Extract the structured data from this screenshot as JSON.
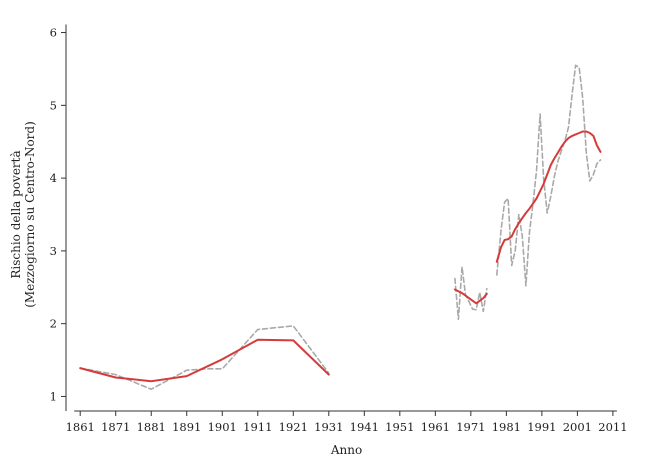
{
  "chart_data": {
    "type": "line",
    "title": "",
    "xlabel": "Anno",
    "ylabel_line1": "Rischio della povertà",
    "ylabel_line2": "(Mezzogiorno su Centro-Nord)",
    "xlim": [
      1857,
      2013
    ],
    "ylim": [
      0.8,
      6.2
    ],
    "xticks": [
      "1861",
      "1871",
      "1881",
      "1891",
      "1901",
      "1911",
      "1921",
      "1931",
      "1941",
      "1951",
      "1961",
      "1971",
      "1981",
      "1991",
      "2001",
      "2011"
    ],
    "yticks": [
      "1",
      "2",
      "3",
      "4",
      "5",
      "6"
    ],
    "grid": false,
    "legend": "none",
    "series": [
      {
        "style": "dashed",
        "color": "#a9a9a9",
        "segments": [
          {
            "x": [
              1861,
              1871,
              1881,
              1891,
              1897,
              1901,
              1911,
              1921,
              1931
            ],
            "y": [
              1.39,
              1.3,
              1.1,
              1.36,
              1.38,
              1.38,
              1.92,
              1.97,
              1.32
            ]
          },
          {
            "x": [
              1966.5,
              1967.5,
              1968.5,
              1969.5,
              1970.5,
              1971.5,
              1972.5,
              1973.5,
              1974.5,
              1975.5
            ],
            "y": [
              2.62,
              2.06,
              2.78,
              2.4,
              2.3,
              2.2,
              2.19,
              2.43,
              2.17,
              2.48
            ]
          },
          {
            "x": [
              1978.3,
              1979.5,
              1980.5,
              1981.5,
              1982.5,
              1983.5,
              1984.5,
              1985.5,
              1986.5,
              1987.5,
              1988.5,
              1989.5,
              1990.5,
              1991.5,
              1992.5,
              1993.5,
              1994.5,
              1995.5,
              1996.5,
              1997.5,
              1998.5,
              1999.5,
              2000.5,
              2001.5,
              2002.5,
              2003.5,
              2004.5,
              2005.5,
              2006.5,
              2007.5
            ],
            "y": [
              2.67,
              3.28,
              3.67,
              3.72,
              2.8,
              3.0,
              3.5,
              3.2,
              2.52,
              3.25,
              3.65,
              4.1,
              4.88,
              4.0,
              3.52,
              3.75,
              4.02,
              4.23,
              4.38,
              4.52,
              4.7,
              5.15,
              5.55,
              5.52,
              5.1,
              4.35,
              3.96,
              4.05,
              4.2,
              4.25
            ]
          }
        ]
      },
      {
        "style": "solid",
        "color": "#d43c3c",
        "segments": [
          {
            "x": [
              1861,
              1871,
              1881,
              1891,
              1901,
              1911,
              1921,
              1931
            ],
            "y": [
              1.39,
              1.26,
              1.21,
              1.28,
              1.51,
              1.78,
              1.77,
              1.3
            ]
          },
          {
            "x": [
              1966.5,
              1968.5,
              1970.5,
              1972.5,
              1974.5,
              1975.5
            ],
            "y": [
              2.47,
              2.42,
              2.35,
              2.28,
              2.35,
              2.41
            ]
          },
          {
            "x": [
              1978.3,
              1979.5,
              1980.5,
              1981.5,
              1982.5,
              1983.5,
              1984.5,
              1985.5,
              1986.5,
              1987.5,
              1988.5,
              1989.5,
              1990.5,
              1991.5,
              1992.5,
              1993.5,
              1994.5,
              1995.5,
              1996.5,
              1997.5,
              1998.5,
              1999.5,
              2000.5,
              2001.5,
              2002.5,
              2003.5,
              2004.5,
              2005.5,
              2006.5,
              2007.5
            ],
            "y": [
              2.85,
              3.05,
              3.15,
              3.16,
              3.2,
              3.3,
              3.38,
              3.45,
              3.52,
              3.58,
              3.65,
              3.72,
              3.82,
              3.92,
              4.05,
              4.18,
              4.27,
              4.35,
              4.43,
              4.5,
              4.55,
              4.58,
              4.6,
              4.62,
              4.64,
              4.64,
              4.62,
              4.58,
              4.45,
              4.36
            ]
          }
        ]
      }
    ]
  }
}
